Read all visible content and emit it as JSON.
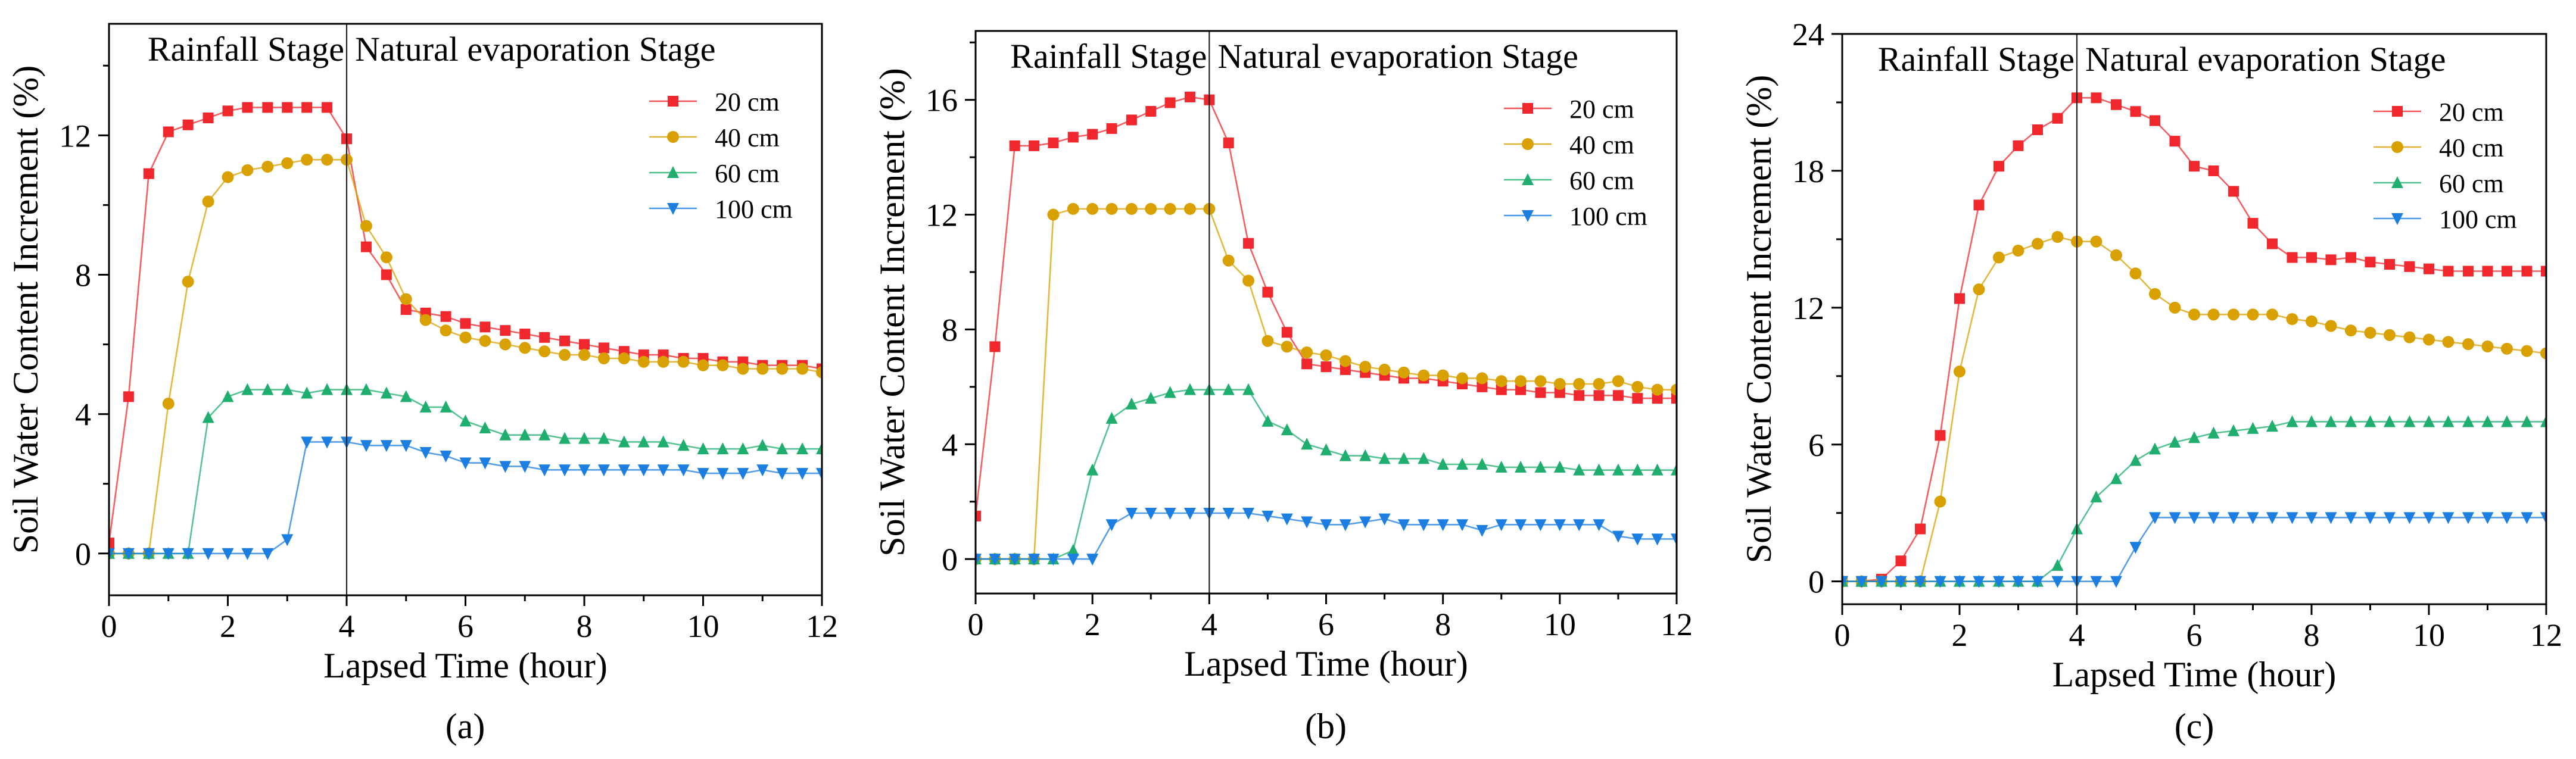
{
  "colors": {
    "20 cm": "#f0282d",
    "40 cm": "#d8a000",
    "60 cm": "#1fae6e",
    "100 cm": "#1c7ee0"
  },
  "chart_data": [
    {
      "type": "line",
      "panel_label": "(a)",
      "title": "",
      "xlabel": "Lapsed Time (hour)",
      "ylabel": "Soil Water Content Increment (%)",
      "xlim": [
        0,
        12
      ],
      "ylim": [
        -1.2,
        15.2
      ],
      "xticks": [
        0,
        2,
        4,
        6,
        8,
        10,
        12
      ],
      "yticks": [
        0,
        4,
        8,
        12
      ],
      "divider_x": 4,
      "stage_labels": [
        "Rainfall Stage",
        "Natural evaporation Stage"
      ],
      "legend_position": "top-right",
      "series": [
        {
          "name": "20 cm",
          "marker": "square",
          "x": [
            0,
            0.33,
            0.67,
            1,
            1.33,
            1.67,
            2,
            2.33,
            2.67,
            3,
            3.33,
            3.67,
            4,
            4.33,
            4.67,
            5,
            5.33,
            5.67,
            6,
            6.33,
            6.67,
            7,
            7.33,
            7.67,
            8,
            8.33,
            8.67,
            9,
            9.33,
            9.67,
            10,
            10.33,
            10.67,
            11,
            11.33,
            11.67,
            12
          ],
          "y": [
            0.3,
            4.5,
            10.9,
            12.1,
            12.3,
            12.5,
            12.7,
            12.8,
            12.8,
            12.8,
            12.8,
            12.8,
            11.9,
            8.8,
            8.0,
            7.0,
            6.9,
            6.8,
            6.6,
            6.5,
            6.4,
            6.3,
            6.2,
            6.1,
            6.0,
            5.9,
            5.8,
            5.7,
            5.7,
            5.6,
            5.6,
            5.5,
            5.5,
            5.4,
            5.4,
            5.4,
            5.3
          ]
        },
        {
          "name": "40 cm",
          "marker": "circle",
          "x": [
            0,
            0.33,
            0.67,
            1,
            1.33,
            1.67,
            2,
            2.33,
            2.67,
            3,
            3.33,
            3.67,
            4,
            4.33,
            4.67,
            5,
            5.33,
            5.67,
            6,
            6.33,
            6.67,
            7,
            7.33,
            7.67,
            8,
            8.33,
            8.67,
            9,
            9.33,
            9.67,
            10,
            10.33,
            10.67,
            11,
            11.33,
            11.67,
            12
          ],
          "y": [
            0,
            0,
            0,
            4.3,
            7.8,
            10.1,
            10.8,
            11.0,
            11.1,
            11.2,
            11.3,
            11.3,
            11.3,
            9.4,
            8.5,
            7.3,
            6.7,
            6.4,
            6.2,
            6.1,
            6.0,
            5.9,
            5.8,
            5.7,
            5.7,
            5.6,
            5.6,
            5.5,
            5.5,
            5.5,
            5.4,
            5.4,
            5.3,
            5.3,
            5.3,
            5.3,
            5.2
          ]
        },
        {
          "name": "60 cm",
          "marker": "triangle-up",
          "x": [
            0,
            0.33,
            0.67,
            1,
            1.33,
            1.67,
            2,
            2.33,
            2.67,
            3,
            3.33,
            3.67,
            4,
            4.33,
            4.67,
            5,
            5.33,
            5.67,
            6,
            6.33,
            6.67,
            7,
            7.33,
            7.67,
            8,
            8.33,
            8.67,
            9,
            9.33,
            9.67,
            10,
            10.33,
            10.67,
            11,
            11.33,
            11.67,
            12
          ],
          "y": [
            0,
            0,
            0,
            0,
            0,
            3.9,
            4.5,
            4.7,
            4.7,
            4.7,
            4.6,
            4.7,
            4.7,
            4.7,
            4.6,
            4.5,
            4.2,
            4.2,
            3.8,
            3.6,
            3.4,
            3.4,
            3.4,
            3.3,
            3.3,
            3.3,
            3.2,
            3.2,
            3.2,
            3.1,
            3.0,
            3.0,
            3.0,
            3.1,
            3.0,
            3.0,
            3.0
          ]
        },
        {
          "name": "100 cm",
          "marker": "triangle-down",
          "x": [
            0,
            0.33,
            0.67,
            1,
            1.33,
            1.67,
            2,
            2.33,
            2.67,
            3,
            3.33,
            3.67,
            4,
            4.33,
            4.67,
            5,
            5.33,
            5.67,
            6,
            6.33,
            6.67,
            7,
            7.33,
            7.67,
            8,
            8.33,
            8.67,
            9,
            9.33,
            9.67,
            10,
            10.33,
            10.67,
            11,
            11.33,
            11.67,
            12
          ],
          "y": [
            0,
            0,
            0,
            0,
            0,
            0,
            0,
            0,
            0,
            0.4,
            3.2,
            3.2,
            3.2,
            3.1,
            3.1,
            3.1,
            2.9,
            2.8,
            2.6,
            2.6,
            2.5,
            2.5,
            2.4,
            2.4,
            2.4,
            2.4,
            2.4,
            2.4,
            2.4,
            2.4,
            2.3,
            2.3,
            2.3,
            2.4,
            2.3,
            2.3,
            2.3
          ]
        }
      ]
    },
    {
      "type": "line",
      "panel_label": "(b)",
      "title": "",
      "xlabel": "Lapsed Time (hour)",
      "ylabel": "Soil Water Content Increment (%)",
      "xlim": [
        0,
        12
      ],
      "ylim": [
        -1.2,
        18.4
      ],
      "xticks": [
        0,
        2,
        4,
        6,
        8,
        10,
        12
      ],
      "yticks": [
        0,
        4,
        8,
        12,
        16
      ],
      "divider_x": 4,
      "stage_labels": [
        "Rainfall Stage",
        "Natural evaporation Stage"
      ],
      "legend_position": "top-right",
      "series": [
        {
          "name": "20 cm",
          "marker": "square",
          "x": [
            0,
            0.33,
            0.67,
            1,
            1.33,
            1.67,
            2,
            2.33,
            2.67,
            3,
            3.33,
            3.67,
            4,
            4.33,
            4.67,
            5,
            5.33,
            5.67,
            6,
            6.33,
            6.67,
            7,
            7.33,
            7.67,
            8,
            8.33,
            8.67,
            9,
            9.33,
            9.67,
            10,
            10.33,
            10.67,
            11,
            11.33,
            11.67,
            12
          ],
          "y": [
            1.5,
            7.4,
            14.4,
            14.4,
            14.5,
            14.7,
            14.8,
            15.0,
            15.3,
            15.6,
            15.9,
            16.1,
            16.0,
            14.5,
            11.0,
            9.3,
            7.9,
            6.8,
            6.7,
            6.6,
            6.5,
            6.4,
            6.3,
            6.3,
            6.2,
            6.1,
            6.0,
            5.9,
            5.9,
            5.8,
            5.8,
            5.7,
            5.7,
            5.7,
            5.6,
            5.6,
            5.6
          ]
        },
        {
          "name": "40 cm",
          "marker": "circle",
          "x": [
            0,
            0.33,
            0.67,
            1,
            1.33,
            1.67,
            2,
            2.33,
            2.67,
            3,
            3.33,
            3.67,
            4,
            4.33,
            4.67,
            5,
            5.33,
            5.67,
            6,
            6.33,
            6.67,
            7,
            7.33,
            7.67,
            8,
            8.33,
            8.67,
            9,
            9.33,
            9.67,
            10,
            10.33,
            10.67,
            11,
            11.33,
            11.67,
            12
          ],
          "y": [
            0,
            0,
            0,
            0,
            12.0,
            12.2,
            12.2,
            12.2,
            12.2,
            12.2,
            12.2,
            12.2,
            12.2,
            10.4,
            9.7,
            7.6,
            7.4,
            7.2,
            7.1,
            6.9,
            6.7,
            6.6,
            6.5,
            6.4,
            6.4,
            6.3,
            6.3,
            6.2,
            6.2,
            6.2,
            6.1,
            6.1,
            6.1,
            6.2,
            6.0,
            5.9,
            5.9
          ]
        },
        {
          "name": "60 cm",
          "marker": "triangle-up",
          "x": [
            0,
            0.33,
            0.67,
            1,
            1.33,
            1.67,
            2,
            2.33,
            2.67,
            3,
            3.33,
            3.67,
            4,
            4.33,
            4.67,
            5,
            5.33,
            5.67,
            6,
            6.33,
            6.67,
            7,
            7.33,
            7.67,
            8,
            8.33,
            8.67,
            9,
            9.33,
            9.67,
            10,
            10.33,
            10.67,
            11,
            11.33,
            11.67,
            12
          ],
          "y": [
            0,
            0,
            0,
            0,
            0,
            0.3,
            3.1,
            4.9,
            5.4,
            5.6,
            5.8,
            5.9,
            5.9,
            5.9,
            5.9,
            4.8,
            4.5,
            4.0,
            3.8,
            3.6,
            3.6,
            3.5,
            3.5,
            3.5,
            3.3,
            3.3,
            3.3,
            3.2,
            3.2,
            3.2,
            3.2,
            3.1,
            3.1,
            3.1,
            3.1,
            3.1,
            3.1
          ]
        },
        {
          "name": "100 cm",
          "marker": "triangle-down",
          "x": [
            0,
            0.33,
            0.67,
            1,
            1.33,
            1.67,
            2,
            2.33,
            2.67,
            3,
            3.33,
            3.67,
            4,
            4.33,
            4.67,
            5,
            5.33,
            5.67,
            6,
            6.33,
            6.67,
            7,
            7.33,
            7.67,
            8,
            8.33,
            8.67,
            9,
            9.33,
            9.67,
            10,
            10.33,
            10.67,
            11,
            11.33,
            11.67,
            12
          ],
          "y": [
            0,
            0,
            0,
            0,
            0,
            0,
            0,
            1.2,
            1.6,
            1.6,
            1.6,
            1.6,
            1.6,
            1.6,
            1.6,
            1.5,
            1.4,
            1.3,
            1.2,
            1.2,
            1.3,
            1.4,
            1.2,
            1.2,
            1.2,
            1.2,
            1.0,
            1.2,
            1.2,
            1.2,
            1.2,
            1.2,
            1.2,
            0.8,
            0.7,
            0.7,
            0.7
          ]
        }
      ]
    },
    {
      "type": "line",
      "panel_label": "(c)",
      "title": "",
      "xlabel": "Lapsed Time (hour)",
      "ylabel": "Soil Water Content Increment (%)",
      "xlim": [
        0,
        12
      ],
      "ylim": [
        -1.0,
        24
      ],
      "xticks": [
        0,
        2,
        4,
        6,
        8,
        10,
        12
      ],
      "yticks": [
        0,
        6,
        12,
        18,
        24
      ],
      "divider_x": 4,
      "stage_labels": [
        "Rainfall Stage",
        "Natural evaporation Stage"
      ],
      "legend_position": "top-right",
      "series": [
        {
          "name": "20 cm",
          "marker": "square",
          "x": [
            0,
            0.33,
            0.67,
            1,
            1.33,
            1.67,
            2,
            2.33,
            2.67,
            3,
            3.33,
            3.67,
            4,
            4.33,
            4.67,
            5,
            5.33,
            5.67,
            6,
            6.33,
            6.67,
            7,
            7.33,
            7.67,
            8,
            8.33,
            8.67,
            9,
            9.33,
            9.67,
            10,
            10.33,
            10.67,
            11,
            11.33,
            11.67,
            12
          ],
          "y": [
            0,
            0,
            0.1,
            0.9,
            2.3,
            6.4,
            12.4,
            16.5,
            18.2,
            19.1,
            19.8,
            20.3,
            21.2,
            21.2,
            20.9,
            20.6,
            20.2,
            19.3,
            18.2,
            18.0,
            17.1,
            15.7,
            14.8,
            14.2,
            14.2,
            14.1,
            14.2,
            14.0,
            13.9,
            13.8,
            13.7,
            13.6,
            13.6,
            13.6,
            13.6,
            13.6,
            13.6
          ]
        },
        {
          "name": "40 cm",
          "marker": "circle",
          "x": [
            0,
            0.33,
            0.67,
            1,
            1.33,
            1.67,
            2,
            2.33,
            2.67,
            3,
            3.33,
            3.67,
            4,
            4.33,
            4.67,
            5,
            5.33,
            5.67,
            6,
            6.33,
            6.67,
            7,
            7.33,
            7.67,
            8,
            8.33,
            8.67,
            9,
            9.33,
            9.67,
            10,
            10.33,
            10.67,
            11,
            11.33,
            11.67,
            12
          ],
          "y": [
            0,
            0,
            0,
            0,
            0,
            3.5,
            9.2,
            12.8,
            14.2,
            14.5,
            14.8,
            15.1,
            14.9,
            14.9,
            14.3,
            13.5,
            12.6,
            12.0,
            11.7,
            11.7,
            11.7,
            11.7,
            11.7,
            11.5,
            11.4,
            11.2,
            11.0,
            10.9,
            10.8,
            10.7,
            10.6,
            10.5,
            10.4,
            10.3,
            10.2,
            10.1,
            10.0
          ]
        },
        {
          "name": "60 cm",
          "marker": "triangle-up",
          "x": [
            0,
            0.33,
            0.67,
            1,
            1.33,
            1.67,
            2,
            2.33,
            2.67,
            3,
            3.33,
            3.67,
            4,
            4.33,
            4.67,
            5,
            5.33,
            5.67,
            6,
            6.33,
            6.67,
            7,
            7.33,
            7.67,
            8,
            8.33,
            8.67,
            9,
            9.33,
            9.67,
            10,
            10.33,
            10.67,
            11,
            11.33,
            11.67,
            12
          ],
          "y": [
            0,
            0,
            0,
            0,
            0,
            0,
            0,
            0,
            0,
            0,
            0,
            0.7,
            2.3,
            3.7,
            4.5,
            5.3,
            5.8,
            6.1,
            6.3,
            6.5,
            6.6,
            6.7,
            6.8,
            7.0,
            7.0,
            7.0,
            7.0,
            7.0,
            7.0,
            7.0,
            7.0,
            7.0,
            7.0,
            7.0,
            7.0,
            7.0,
            7.0
          ]
        },
        {
          "name": "100 cm",
          "marker": "triangle-down",
          "x": [
            0,
            0.33,
            0.67,
            1,
            1.33,
            1.67,
            2,
            2.33,
            2.67,
            3,
            3.33,
            3.67,
            4,
            4.33,
            4.67,
            5,
            5.33,
            5.67,
            6,
            6.33,
            6.67,
            7,
            7.33,
            7.67,
            8,
            8.33,
            8.67,
            9,
            9.33,
            9.67,
            10,
            10.33,
            10.67,
            11,
            11.33,
            11.67,
            12
          ],
          "y": [
            0,
            0,
            0,
            0,
            0,
            0,
            0,
            0,
            0,
            0,
            0,
            0,
            0,
            0,
            0,
            1.5,
            2.8,
            2.8,
            2.8,
            2.8,
            2.8,
            2.8,
            2.8,
            2.8,
            2.8,
            2.8,
            2.8,
            2.8,
            2.8,
            2.8,
            2.8,
            2.8,
            2.8,
            2.8,
            2.8,
            2.8,
            2.8
          ]
        }
      ]
    }
  ]
}
